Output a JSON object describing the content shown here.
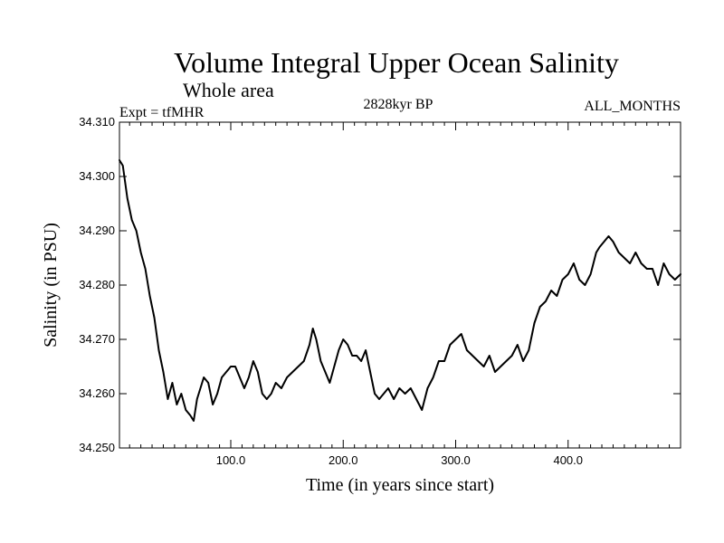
{
  "chart_data": {
    "type": "line",
    "title": "Volume Integral Upper Ocean Salinity",
    "subtitle": "Whole area",
    "expt_label": "Expt = tfMHR",
    "period_label": "2828kyr BP",
    "months_label": "ALL_MONTHS",
    "xlabel": "Time (in years since start)",
    "ylabel": "Salinity (in PSU)",
    "xlim": [
      1,
      500
    ],
    "ylim": [
      34.25,
      34.31
    ],
    "grid": false,
    "x_ticks": [
      {
        "value": 100,
        "label": "100.0"
      },
      {
        "value": 200,
        "label": "200.0"
      },
      {
        "value": 300,
        "label": "300.0"
      },
      {
        "value": 400,
        "label": "400.0"
      }
    ],
    "y_ticks": [
      {
        "value": 34.25,
        "label": "34.250"
      },
      {
        "value": 34.26,
        "label": "34.260"
      },
      {
        "value": 34.27,
        "label": "34.270"
      },
      {
        "value": 34.28,
        "label": "34.280"
      },
      {
        "value": 34.29,
        "label": "34.290"
      },
      {
        "value": 34.3,
        "label": "34.300"
      },
      {
        "value": 34.31,
        "label": "34.310"
      }
    ],
    "series": [
      {
        "name": "Salinity",
        "color": "#000000",
        "x": [
          1,
          4,
          8,
          12,
          16,
          20,
          24,
          28,
          32,
          36,
          40,
          44,
          48,
          52,
          56,
          60,
          64,
          67,
          70,
          73,
          76,
          80,
          84,
          88,
          92,
          96,
          100,
          104,
          108,
          112,
          116,
          120,
          124,
          128,
          132,
          136,
          140,
          145,
          150,
          155,
          160,
          165,
          170,
          173,
          176,
          180,
          184,
          188,
          192,
          196,
          200,
          204,
          208,
          212,
          216,
          220,
          224,
          228,
          232,
          236,
          240,
          245,
          250,
          255,
          260,
          265,
          270,
          275,
          280,
          285,
          290,
          295,
          300,
          305,
          310,
          315,
          320,
          325,
          330,
          335,
          340,
          345,
          350,
          355,
          360,
          365,
          370,
          375,
          380,
          385,
          390,
          395,
          400,
          405,
          410,
          415,
          420,
          425,
          428,
          432,
          436,
          440,
          445,
          450,
          455,
          460,
          465,
          470,
          475,
          480,
          485,
          490,
          495,
          500
        ],
        "y": [
          34.303,
          34.302,
          34.296,
          34.292,
          34.29,
          34.286,
          34.283,
          34.278,
          34.274,
          34.268,
          34.264,
          34.259,
          34.262,
          34.258,
          34.26,
          34.257,
          34.256,
          34.255,
          34.259,
          34.261,
          34.263,
          34.262,
          34.258,
          34.26,
          34.263,
          34.264,
          34.265,
          34.265,
          34.263,
          34.261,
          34.263,
          34.266,
          34.264,
          34.26,
          34.259,
          34.26,
          34.262,
          34.261,
          34.263,
          34.264,
          34.265,
          34.266,
          34.269,
          34.272,
          34.27,
          34.266,
          34.264,
          34.262,
          34.265,
          34.268,
          34.27,
          34.269,
          34.267,
          34.267,
          34.266,
          34.268,
          34.264,
          34.26,
          34.259,
          34.26,
          34.261,
          34.259,
          34.261,
          34.26,
          34.261,
          34.259,
          34.257,
          34.261,
          34.263,
          34.266,
          34.266,
          34.269,
          34.27,
          34.271,
          34.268,
          34.267,
          34.266,
          34.265,
          34.267,
          34.264,
          34.265,
          34.266,
          34.267,
          34.269,
          34.266,
          34.268,
          34.273,
          34.276,
          34.277,
          34.279,
          34.278,
          34.281,
          34.282,
          34.284,
          34.281,
          34.28,
          34.282,
          34.286,
          34.287,
          34.288,
          34.289,
          34.288,
          34.286,
          34.285,
          34.284,
          34.286,
          34.284,
          34.283,
          34.283,
          34.28,
          34.284,
          34.282,
          34.281,
          34.282
        ]
      }
    ]
  }
}
